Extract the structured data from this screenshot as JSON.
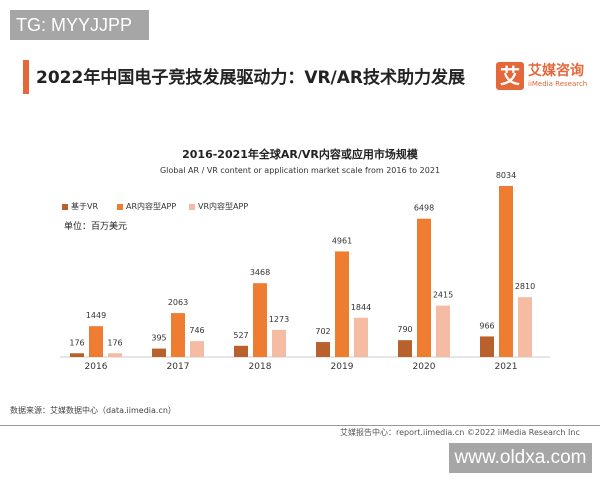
{
  "watermark_top": "TG: MYYJJPP",
  "header": {
    "title": "2022年中国电子竞技发展驱动力：VR/AR技术助力发展",
    "logo_mark": "艾",
    "logo_cn": "艾媒咨询",
    "logo_en": "iiMedia Research"
  },
  "chart_data": {
    "type": "bar",
    "title": "2016-2021年全球AR/VR内容或应用市场规模",
    "subtitle": "Global AR / VR content or application market scale from 2016 to 2021",
    "unit": "单位：百万美元",
    "categories": [
      "2016",
      "2017",
      "2018",
      "2019",
      "2020",
      "2021"
    ],
    "series": [
      {
        "name": "基于VR",
        "values": [
          176,
          395,
          527,
          702,
          790,
          966
        ],
        "color": "#b8612c"
      },
      {
        "name": "AR内容型APP",
        "values": [
          1449,
          2063,
          3468,
          4961,
          6498,
          8034
        ],
        "color": "#ee7d32"
      },
      {
        "name": "VR内容型APP",
        "values": [
          176,
          746,
          1273,
          1844,
          2415,
          2810
        ],
        "color": "#f5bba3"
      }
    ],
    "legend": "top-left",
    "grid": false
  },
  "footer": {
    "source": "数据来源：艾媒数据中心（data.iimedia.cn）",
    "report": "艾媒报告中心：report.iimedia.cn  ©2022  iiMedia Research Inc"
  },
  "watermark_bottom": "www.oldxa.com"
}
